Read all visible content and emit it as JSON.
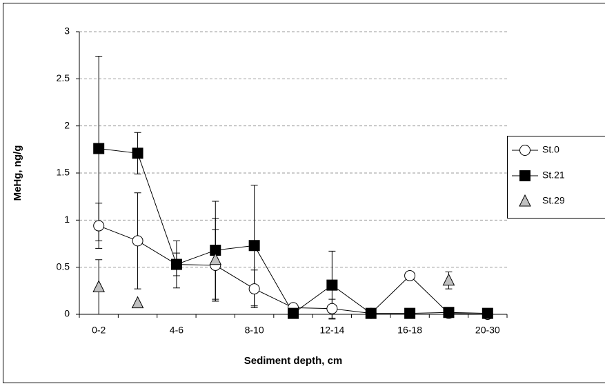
{
  "chart_data": {
    "type": "line",
    "x_label": "Sediment depth, cm",
    "y_label": "MeHg, ng/g",
    "categories": [
      "0-2",
      null,
      "4-6",
      null,
      "8-10",
      null,
      "12-14",
      null,
      "16-18",
      null,
      "20-30"
    ],
    "ylim": [
      0,
      3
    ],
    "yticks": [
      0,
      0.5,
      1,
      1.5,
      2,
      2.5,
      3
    ],
    "grid": true,
    "legend": "right",
    "series": [
      {
        "name": "St.0",
        "color": "#ffffff",
        "marker": "circle",
        "line": true,
        "values": [
          0.94,
          0.78,
          0.53,
          0.52,
          0.27,
          0.07,
          0.06,
          0.01,
          0.41,
          0.01,
          0
        ],
        "errors": [
          0.24,
          0.51,
          0.12,
          0.38,
          0.2,
          0.04,
          0.1,
          null,
          null,
          null,
          null
        ]
      },
      {
        "name": "St.21",
        "color": "#000000",
        "marker": "square",
        "line": true,
        "values": [
          1.76,
          1.71,
          0.53,
          0.68,
          0.73,
          0.01,
          0.31,
          0.01,
          0.01,
          0.02,
          0.01
        ],
        "errors": [
          0.98,
          0.22,
          0.25,
          0.52,
          0.64,
          null,
          0.36,
          null,
          null,
          null,
          null
        ]
      },
      {
        "name": "St.29",
        "color": "#c0c0c0",
        "marker": "triangle",
        "line": false,
        "values": [
          0.29,
          0.12,
          null,
          0.58,
          null,
          null,
          null,
          null,
          null,
          0.36,
          null
        ],
        "errors": [
          0.29,
          null,
          null,
          0.44,
          null,
          null,
          null,
          null,
          null,
          0.09,
          null
        ]
      }
    ]
  }
}
